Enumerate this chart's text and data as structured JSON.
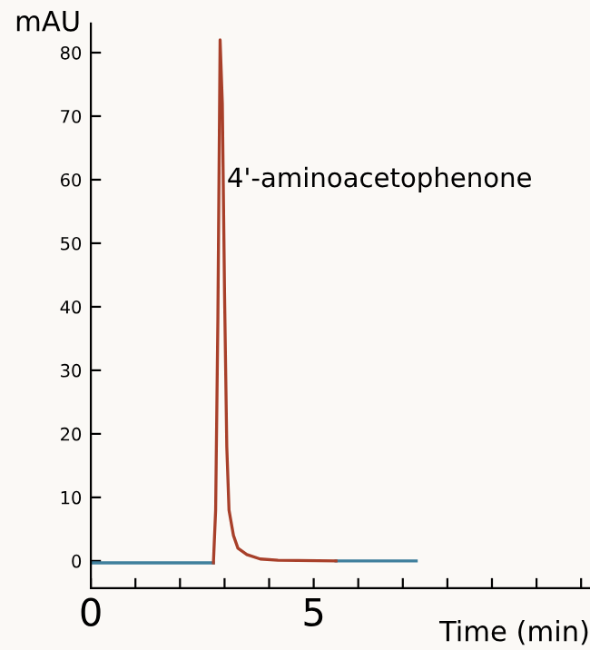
{
  "chart_data": {
    "type": "line",
    "ylabel": "mAU",
    "xlabel": "Time (min)",
    "annotations": [
      {
        "text": "4'-aminoacetophenone",
        "x": 3.05,
        "y": 60
      }
    ],
    "series": [
      {
        "color": "#3f7f9c",
        "x": [
          0,
          2.75,
          4.2,
          5.5,
          7.3
        ],
        "values": [
          -0.3,
          -0.3,
          null,
          0,
          0
        ]
      },
      {
        "color": "#a8402a",
        "x": [
          2.75,
          2.8,
          2.85,
          2.9,
          2.95,
          3.0,
          3.05,
          3.1,
          3.2,
          3.3,
          3.5,
          3.8,
          4.2,
          5.5
        ],
        "values": [
          -0.3,
          8,
          38,
          82,
          72,
          42,
          18,
          8,
          4,
          2,
          1,
          0.3,
          0.1,
          0
        ]
      }
    ],
    "xlim": [
      0,
      11.2
    ],
    "ylim": [
      -4.3,
      84.6
    ],
    "xticks": [
      0,
      {
        "value": 1,
        "label": null
      },
      {
        "value": 2,
        "label": null
      },
      {
        "value": 3,
        "label": null
      },
      {
        "value": 4,
        "label": null
      },
      5,
      {
        "value": 6,
        "label": null
      },
      {
        "value": 7,
        "label": null
      },
      {
        "value": 8,
        "label": null
      },
      {
        "value": 9,
        "label": null
      },
      {
        "value": 10,
        "label": null
      },
      {
        "value": 11,
        "label": null
      }
    ],
    "yticks": [
      0,
      10,
      20,
      30,
      40,
      50,
      60,
      70,
      80
    ],
    "grid": false,
    "legend": false,
    "marker": "none",
    "line_style": "solid"
  }
}
